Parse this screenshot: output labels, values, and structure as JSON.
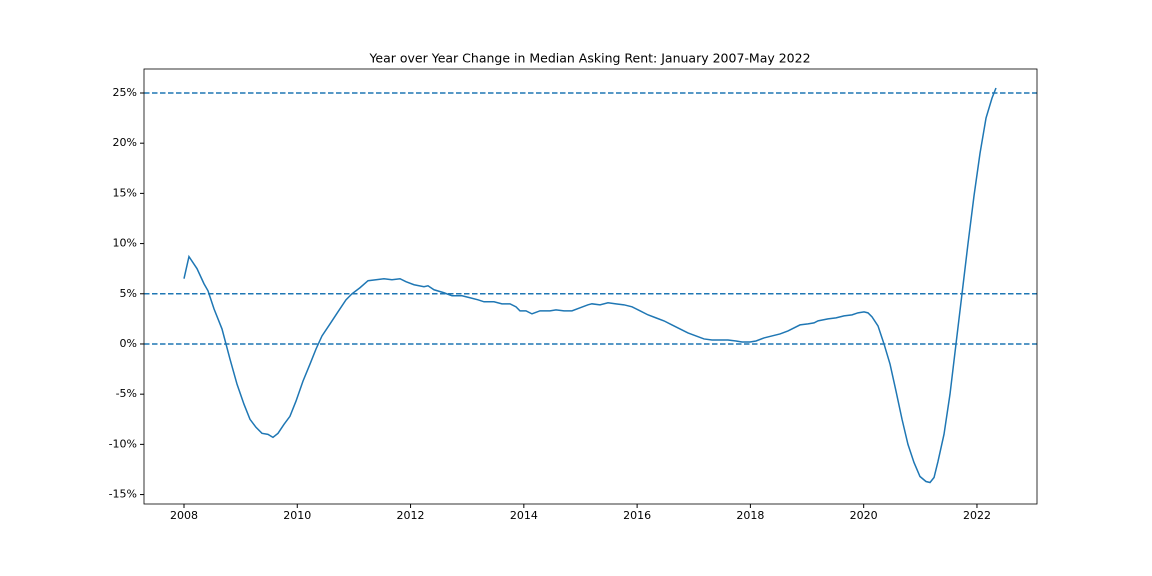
{
  "chart_data": {
    "type": "line",
    "title": "Year over Year Change in Median Asking Rent: January 2007-May 2022",
    "x": [
      2008.0,
      2008.088,
      2008.23,
      2008.353,
      2008.424,
      2008.53,
      2008.671,
      2008.812,
      2008.936,
      2009.059,
      2009.165,
      2009.271,
      2009.377,
      2009.483,
      2009.571,
      2009.66,
      2009.766,
      2009.871,
      2009.977,
      2010.101,
      2010.225,
      2010.331,
      2010.436,
      2010.578,
      2010.719,
      2010.86,
      2010.966,
      2011.107,
      2011.249,
      2011.39,
      2011.531,
      2011.672,
      2011.814,
      2011.919,
      2012.061,
      2012.237,
      2012.308,
      2012.414,
      2012.59,
      2012.732,
      2012.908,
      2013.049,
      2013.191,
      2013.297,
      2013.473,
      2013.614,
      2013.756,
      2013.862,
      2013.932,
      2014.038,
      2014.144,
      2014.285,
      2014.462,
      2014.568,
      2014.709,
      2014.85,
      2014.992,
      2015.133,
      2015.203,
      2015.345,
      2015.486,
      2015.627,
      2015.768,
      2015.91,
      2016.051,
      2016.192,
      2016.333,
      2016.475,
      2016.616,
      2016.757,
      2016.898,
      2017.04,
      2017.181,
      2017.322,
      2017.463,
      2017.605,
      2017.746,
      2017.852,
      2017.993,
      2018.099,
      2018.24,
      2018.381,
      2018.523,
      2018.664,
      2018.734,
      2018.876,
      2019.017,
      2019.123,
      2019.194,
      2019.37,
      2019.511,
      2019.653,
      2019.794,
      2019.9,
      2020.006,
      2020.076,
      2020.147,
      2020.253,
      2020.359,
      2020.465,
      2020.571,
      2020.677,
      2020.782,
      2020.888,
      2020.994,
      2021.1,
      2021.171,
      2021.242,
      2021.312,
      2021.418,
      2021.524,
      2021.63,
      2021.736,
      2021.842,
      2021.949,
      2022.054,
      2022.16,
      2022.266,
      2022.336
    ],
    "series": [
      {
        "color": "#1f77b4",
        "values": [
          6.5,
          8.7,
          7.5,
          6,
          5.3,
          3.5,
          1.5,
          -1.5,
          -4,
          -6,
          -7.5,
          -8.3,
          -8.9,
          -9.0,
          -9.3,
          -8.9,
          -8.0,
          -7.2,
          -5.7,
          -3.7,
          -2,
          -0.5,
          0.8,
          2,
          3.2,
          4.4,
          5,
          5.6,
          6.3,
          6.4,
          6.5,
          6.4,
          6.5,
          6.2,
          5.9,
          5.7,
          5.8,
          5.4,
          5.1,
          4.8,
          4.8,
          4.6,
          4.4,
          4.2,
          4.2,
          4.0,
          4.0,
          3.7,
          3.3,
          3.3,
          3.0,
          3.3,
          3.3,
          3.4,
          3.3,
          3.3,
          3.6,
          3.9,
          4.0,
          3.9,
          4.1,
          4.0,
          3.9,
          3.7,
          3.3,
          2.9,
          2.6,
          2.3,
          1.9,
          1.5,
          1.1,
          0.8,
          0.5,
          0.4,
          0.4,
          0.4,
          0.3,
          0.2,
          0.2,
          0.3,
          0.6,
          0.8,
          1.0,
          1.3,
          1.5,
          1.9,
          2.0,
          2.1,
          2.3,
          2.5,
          2.6,
          2.8,
          2.9,
          3.1,
          3.2,
          3.1,
          2.7,
          1.8,
          0,
          -2,
          -4.7,
          -7.5,
          -10.0,
          -11.8,
          -13.2,
          -13.7,
          -13.8,
          -13.3,
          -11.7,
          -9,
          -5,
          0,
          5,
          10,
          14.8,
          19,
          22.5,
          24.5,
          25.5
        ]
      }
    ],
    "hlines": [
      25,
      5,
      0
    ],
    "hline_color": "#1f77b4",
    "xlim": [
      2007.294,
      2023.06
    ],
    "xticks": [
      2008,
      2010,
      2012,
      2014,
      2016,
      2018,
      2020,
      2022
    ],
    "ylim": [
      -15.94,
      27.39
    ],
    "yticks": [
      {
        "value": -15,
        "label": "-15%"
      },
      {
        "value": -10,
        "label": "-10%"
      },
      {
        "value": -5,
        "label": "-5%"
      },
      {
        "value": 0,
        "label": "0%"
      },
      {
        "value": 5,
        "label": "5%"
      },
      {
        "value": 10,
        "label": "10%"
      },
      {
        "value": 15,
        "label": "15%"
      },
      {
        "value": 20,
        "label": "20%"
      },
      {
        "value": 25,
        "label": "25%"
      }
    ]
  }
}
